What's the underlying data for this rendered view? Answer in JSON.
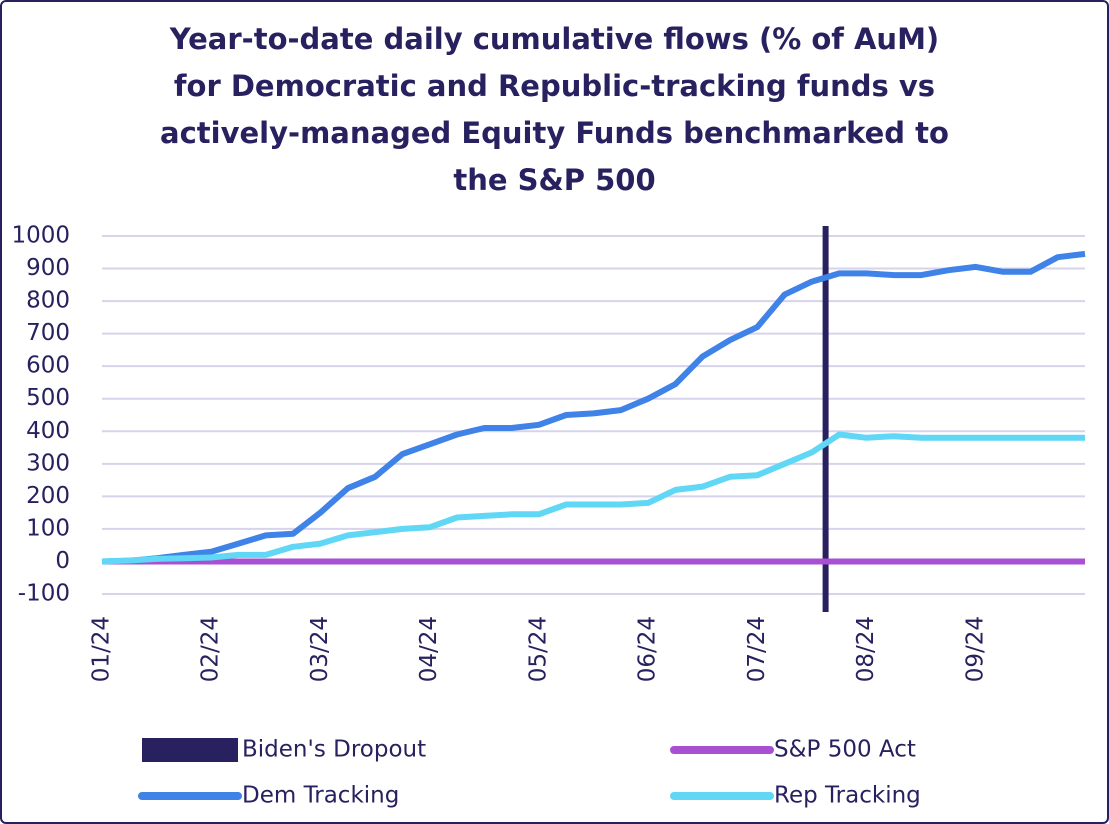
{
  "chart_data": {
    "type": "line",
    "title": "Year-to-date daily cumulative flows (% of AuM)\nfor  Democratic and Republic-tracking funds vs\nactively-managed Equity Funds benchmarked to\nthe S&P 500",
    "categories": [
      "01/24",
      null,
      null,
      null,
      "02/24",
      null,
      null,
      null,
      "03/24",
      null,
      null,
      null,
      "04/24",
      null,
      null,
      null,
      "05/24",
      null,
      null,
      null,
      "06/24",
      null,
      null,
      null,
      "07/24",
      null,
      null,
      null,
      "08/24",
      null,
      null,
      null,
      "09/24",
      null,
      null,
      null,
      null
    ],
    "series": [
      {
        "name": "S&P 500 Act",
        "color": "#a94fd3",
        "values": [
          0,
          0,
          0,
          0,
          0,
          0,
          0,
          0,
          0,
          0,
          0,
          0,
          0,
          0,
          0,
          0,
          0,
          0,
          0,
          0,
          0,
          0,
          0,
          0,
          0,
          0,
          0,
          0,
          0,
          0,
          0,
          0,
          0,
          0,
          0,
          0,
          0
        ]
      },
      {
        "name": "Dem Tracking",
        "color": "#3f82e8",
        "values": [
          0,
          2,
          10,
          20,
          30,
          55,
          80,
          85,
          150,
          225,
          260,
          330,
          360,
          390,
          410,
          410,
          420,
          450,
          455,
          465,
          500,
          545,
          630,
          680,
          720,
          820,
          860,
          885,
          885,
          880,
          880,
          895,
          905,
          890,
          890,
          935,
          945
        ]
      },
      {
        "name": "Rep Tracking",
        "color": "#5fd7f5",
        "values": [
          0,
          3,
          8,
          10,
          12,
          20,
          20,
          45,
          55,
          80,
          90,
          100,
          105,
          135,
          140,
          145,
          145,
          175,
          175,
          175,
          180,
          220,
          230,
          260,
          265,
          300,
          335,
          390,
          380,
          385,
          380,
          380,
          380,
          380,
          380,
          380,
          380
        ]
      }
    ],
    "events": [
      {
        "name": "Biden's Dropout",
        "color": "#27215f",
        "position": 26.5
      }
    ],
    "ylim": [
      -100,
      1000
    ],
    "yticks": [
      -100,
      0,
      100,
      200,
      300,
      400,
      500,
      600,
      700,
      800,
      900,
      1000
    ],
    "grid": true
  }
}
